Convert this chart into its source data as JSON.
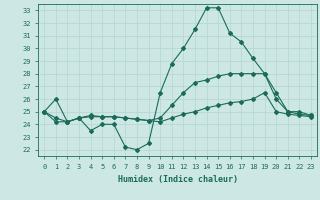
{
  "title": "",
  "xlabel": "Humidex (Indice chaleur)",
  "ylabel": "",
  "background_color": "#cde8e4",
  "line_color": "#1a6b5a",
  "grid_color": "#b8d8d4",
  "xlim": [
    -0.5,
    23.5
  ],
  "ylim": [
    21.5,
    33.5
  ],
  "yticks": [
    22,
    23,
    24,
    25,
    26,
    27,
    28,
    29,
    30,
    31,
    32,
    33
  ],
  "xticks": [
    0,
    1,
    2,
    3,
    4,
    5,
    6,
    7,
    8,
    9,
    10,
    11,
    12,
    13,
    14,
    15,
    16,
    17,
    18,
    19,
    20,
    21,
    22,
    23
  ],
  "series": [
    [
      25.0,
      26.0,
      24.2,
      24.5,
      23.5,
      24.0,
      24.0,
      22.2,
      22.0,
      22.5,
      26.5,
      28.8,
      30.0,
      31.5,
      33.2,
      33.2,
      31.2,
      30.5,
      29.2,
      28.0,
      26.5,
      25.0,
      25.0,
      24.7
    ],
    [
      25.0,
      24.5,
      24.2,
      24.5,
      24.7,
      24.6,
      24.6,
      24.5,
      24.4,
      24.3,
      24.5,
      25.5,
      26.5,
      27.3,
      27.5,
      27.8,
      28.0,
      28.0,
      28.0,
      28.0,
      26.0,
      25.0,
      24.8,
      24.7
    ],
    [
      25.0,
      24.2,
      24.2,
      24.5,
      24.6,
      24.6,
      24.6,
      24.5,
      24.4,
      24.3,
      24.2,
      24.5,
      24.8,
      25.0,
      25.3,
      25.5,
      25.7,
      25.8,
      26.0,
      26.5,
      25.0,
      24.8,
      24.7,
      24.6
    ]
  ]
}
